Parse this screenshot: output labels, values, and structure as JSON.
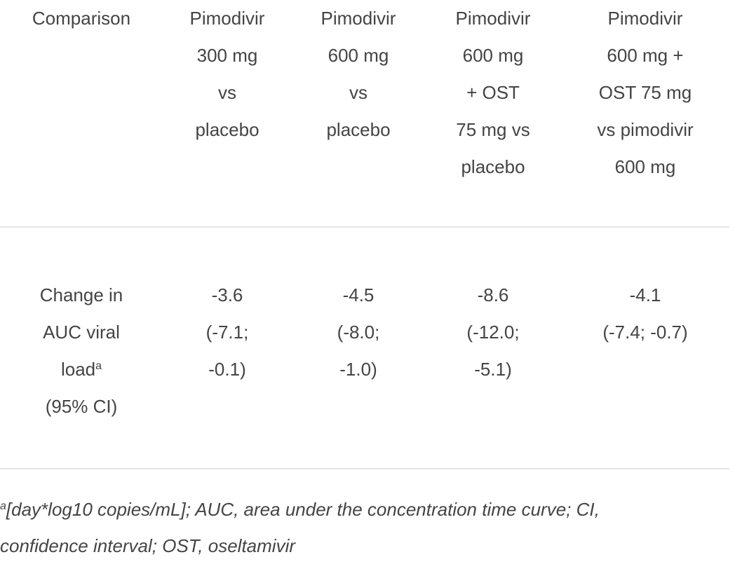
{
  "table": {
    "headers": [
      [
        "Comparison"
      ],
      [
        "Pimodivir",
        "300 mg",
        "vs",
        "placebo"
      ],
      [
        "Pimodivir",
        "600 mg",
        "vs",
        "placebo"
      ],
      [
        "Pimodivir",
        "600 mg",
        "+ OST",
        "75 mg vs",
        "placebo"
      ],
      [
        "Pimodivir",
        "600 mg +",
        "OST 75 mg",
        "vs pimodivir",
        "600 mg"
      ]
    ],
    "row": {
      "label_lines": [
        "Change in",
        "AUC viral",
        "load",
        "(95% CI)"
      ],
      "label_sup": "a",
      "cells": [
        [
          "-3.6",
          "(-7.1;",
          "-0.1)"
        ],
        [
          "-4.5",
          "(-8.0;",
          "-1.0)"
        ],
        [
          "-8.6",
          "(-12.0;",
          "-5.1)"
        ],
        [
          "-4.1",
          "(-7.4; -0.7)"
        ]
      ]
    }
  },
  "footnote": {
    "sup": "a",
    "line1": "[day*log10 copies/mL]; AUC, area under the concentration time curve; CI,",
    "line2": "confidence interval; OST, oseltamivir"
  }
}
